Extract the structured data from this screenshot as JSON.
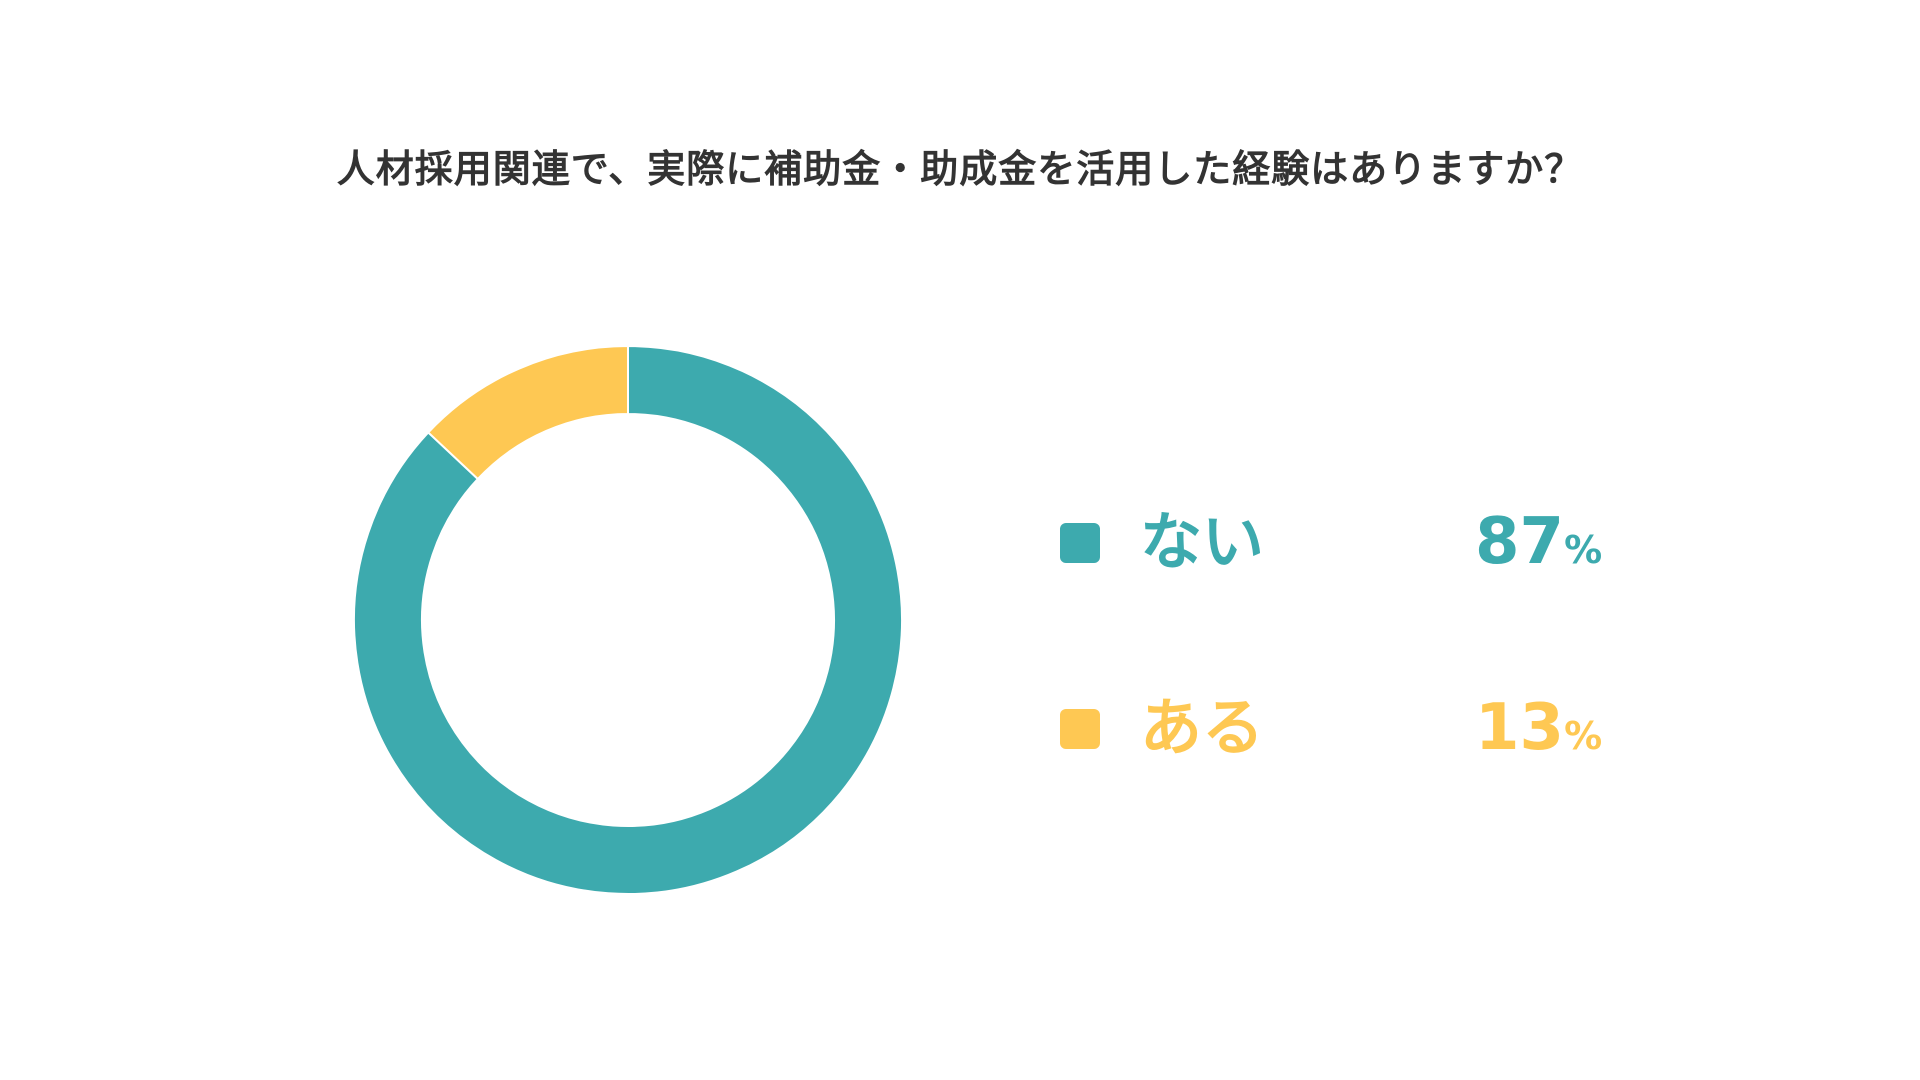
{
  "chart_data": {
    "type": "pie",
    "title": "人材採用関連で、実際に補助金・助成金を活用した経験はありますか？",
    "categories": [
      "ない",
      "ある"
    ],
    "values": [
      87,
      13
    ],
    "value_labels": [
      "87",
      "13"
    ],
    "unit": "%",
    "colors": [
      "#3DAAAE",
      "#FEC853"
    ],
    "donut": true,
    "legend_position": "right"
  }
}
